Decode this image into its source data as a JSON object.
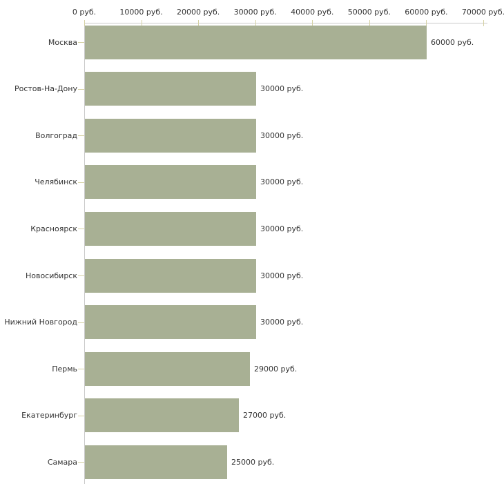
{
  "chart_data": {
    "type": "bar",
    "orientation": "horizontal",
    "title": "",
    "xlabel": "",
    "ylabel": "",
    "categories": [
      "Москва",
      "Ростов-На-Дону",
      "Волгоград",
      "Челябинск",
      "Красноярск",
      "Новосибирск",
      "Нижний Новгород",
      "Пермь",
      "Екатеринбург",
      "Самара"
    ],
    "values": [
      60000,
      30000,
      30000,
      30000,
      30000,
      30000,
      30000,
      29000,
      27000,
      25000
    ],
    "value_labels": [
      "60000 руб.",
      "30000 руб.",
      "30000 руб.",
      "30000 руб.",
      "30000 руб.",
      "30000 руб.",
      "30000 руб.",
      "29000 руб.",
      "27000 руб.",
      "25000 руб."
    ],
    "x_ticks": [
      0,
      10000,
      20000,
      30000,
      40000,
      50000,
      60000,
      70000
    ],
    "x_tick_labels": [
      "0 руб.",
      "10000 руб.",
      "20000 руб.",
      "30000 руб.",
      "40000 руб.",
      "50000 руб.",
      "60000 руб.",
      "70000 руб."
    ],
    "xlim": [
      0,
      70000
    ],
    "unit": "руб.",
    "grid": false,
    "legend": false,
    "colors": {
      "bar": "#a8b094",
      "axis": "#c9c9c9",
      "tick": "#d5d1a3",
      "text": "#333333",
      "background": "#ffffff"
    }
  }
}
